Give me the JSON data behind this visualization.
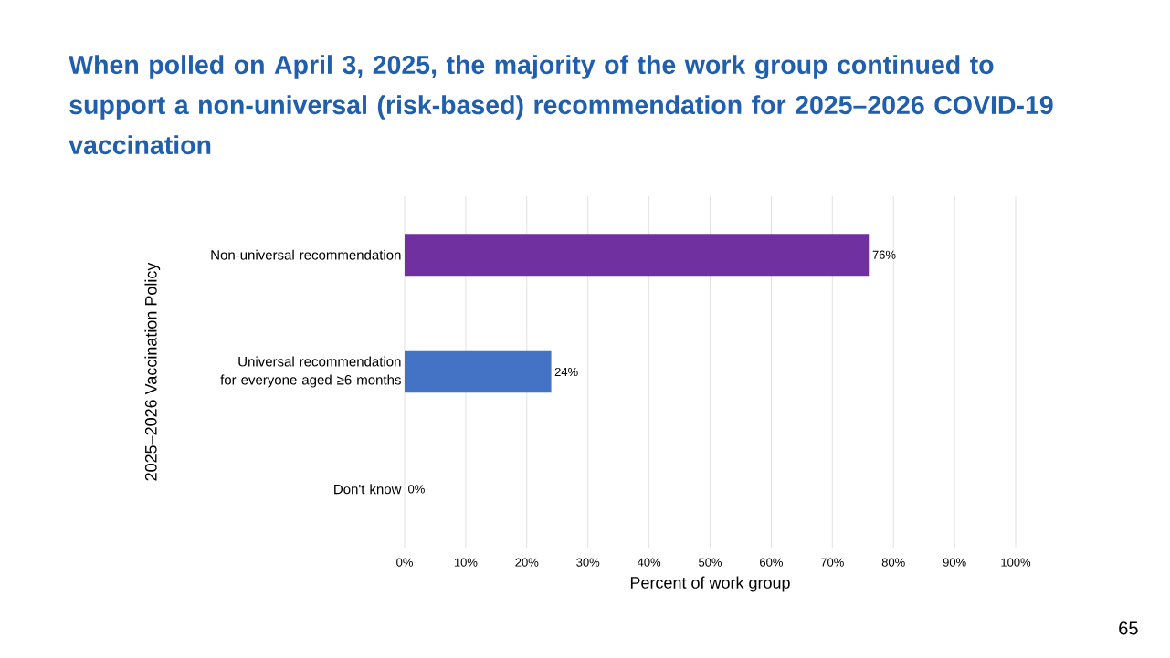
{
  "chart_data": {
    "type": "bar",
    "orientation": "horizontal",
    "title": "When polled on April 3, 2025, the majority of the work group continued to support a non-universal (risk-based) recommendation for 2025–2026 COVID-19 vaccination",
    "categories": [
      "Non-universal recommendation",
      "Universal recommendation for everyone aged ≥6 months",
      "Don't know"
    ],
    "values": [
      76,
      24,
      0
    ],
    "colors": [
      "#7030a0",
      "#4472c4",
      "#a5a5a5"
    ],
    "value_labels": [
      "76%",
      "24%",
      "0%"
    ],
    "xlabel": "Percent of work group",
    "ylabel": "2025–2026 Vaccination Policy",
    "xlim": [
      0,
      100
    ],
    "xticks": [
      {
        "value": 0,
        "label": "0%"
      },
      {
        "value": 10,
        "label": "10%"
      },
      {
        "value": 20,
        "label": "20%"
      },
      {
        "value": 30,
        "label": "30%"
      },
      {
        "value": 40,
        "label": "40%"
      },
      {
        "value": 50,
        "label": "50%"
      },
      {
        "value": 60,
        "label": "60%"
      },
      {
        "value": 70,
        "label": "70%"
      },
      {
        "value": 80,
        "label": "80%"
      },
      {
        "value": 90,
        "label": "90%"
      },
      {
        "value": 100,
        "label": "100%"
      }
    ],
    "grid": "x",
    "annotations": [
      "65"
    ]
  }
}
